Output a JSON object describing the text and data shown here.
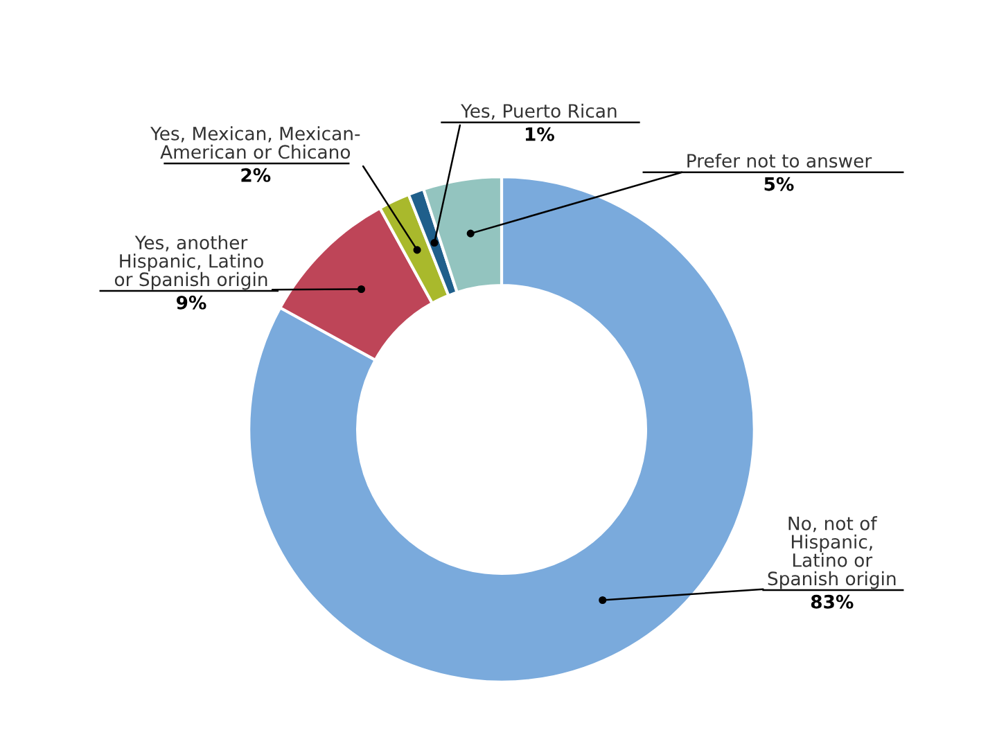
{
  "chart_data": {
    "type": "donut",
    "categories": [
      "No, not of\nHispanic,\nLatino or\nSpanish origin",
      "Yes, another\nHispanic, Latino\nor Spanish origin",
      "Yes, Mexican, Mexican-\nAmerican or Chicano",
      "Yes, Puerto Rican",
      "Prefer not to answer"
    ],
    "values": [
      83,
      9,
      2,
      1,
      5
    ],
    "value_labels": [
      "83%",
      "9%",
      "2%",
      "1%",
      "5%"
    ],
    "colors": [
      "#7aaadc",
      "#be4558",
      "#a9b92c",
      "#1f5f8b",
      "#93c4bf"
    ],
    "legend": false
  }
}
